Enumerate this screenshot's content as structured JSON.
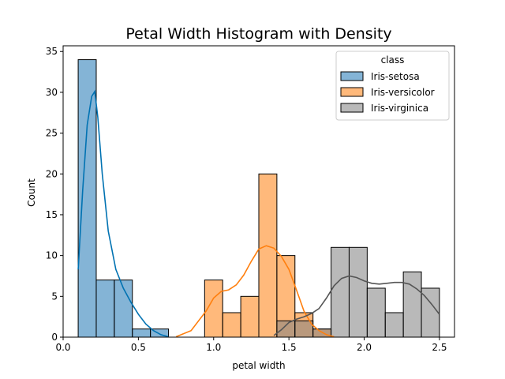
{
  "chart_data": {
    "type": "bar",
    "title": "Petal Width Histogram with Density",
    "xlabel": "petal width",
    "ylabel": "Count",
    "xlim": [
      0.0,
      2.6
    ],
    "ylim": [
      0,
      35.7
    ],
    "xticks": [
      0.0,
      0.5,
      1.0,
      1.5,
      2.0,
      2.5
    ],
    "yticks": [
      0,
      5,
      10,
      15,
      20,
      25,
      30,
      35
    ],
    "xtick_labels": [
      "0.0",
      "0.5",
      "1.0",
      "1.5",
      "2.0",
      "2.5"
    ],
    "ytick_labels": [
      "0",
      "5",
      "10",
      "15",
      "20",
      "25",
      "30",
      "35"
    ],
    "grid": false,
    "legend": {
      "title": "class",
      "position": "top-right"
    },
    "bin_width": 0.12,
    "series": [
      {
        "name": "Iris-setosa",
        "color": "#1f77b4",
        "kde_color": "#0072b2",
        "bins": [
          {
            "x0": 0.1,
            "count": 34
          },
          {
            "x0": 0.22,
            "count": 7
          },
          {
            "x0": 0.34,
            "count": 7
          },
          {
            "x0": 0.46,
            "count": 1
          },
          {
            "x0": 0.58,
            "count": 1
          }
        ],
        "kde": [
          [
            0.1,
            8.3
          ],
          [
            0.13,
            18
          ],
          [
            0.16,
            26
          ],
          [
            0.19,
            29.5
          ],
          [
            0.21,
            30.1
          ],
          [
            0.23,
            27
          ],
          [
            0.26,
            20
          ],
          [
            0.3,
            13
          ],
          [
            0.35,
            8.3
          ],
          [
            0.4,
            6
          ],
          [
            0.45,
            4.3
          ],
          [
            0.5,
            2.8
          ],
          [
            0.55,
            1.6
          ],
          [
            0.6,
            0.8
          ],
          [
            0.65,
            0.3
          ],
          [
            0.7,
            0.05
          ]
        ]
      },
      {
        "name": "Iris-versicolor",
        "color": "#ff7f0e",
        "kde_color": "#ff7f0e",
        "bins": [
          {
            "x0": 0.94,
            "count": 7
          },
          {
            "x0": 1.06,
            "count": 3
          },
          {
            "x0": 1.18,
            "count": 5
          },
          {
            "x0": 1.3,
            "count": 20
          },
          {
            "x0": 1.42,
            "count": 10
          },
          {
            "x0": 1.54,
            "count": 3
          },
          {
            "x0": 1.66,
            "count": 1
          }
        ],
        "kde": [
          [
            0.75,
            0.05
          ],
          [
            0.85,
            0.8
          ],
          [
            0.95,
            3.2
          ],
          [
            1.0,
            4.8
          ],
          [
            1.05,
            5.6
          ],
          [
            1.1,
            5.8
          ],
          [
            1.15,
            6.4
          ],
          [
            1.2,
            7.6
          ],
          [
            1.25,
            9.3
          ],
          [
            1.3,
            10.8
          ],
          [
            1.35,
            11.2
          ],
          [
            1.4,
            10.9
          ],
          [
            1.45,
            9.9
          ],
          [
            1.5,
            8.3
          ],
          [
            1.55,
            5.8
          ],
          [
            1.6,
            3.2
          ],
          [
            1.65,
            1.6
          ],
          [
            1.7,
            0.8
          ],
          [
            1.75,
            0.3
          ],
          [
            1.8,
            0.05
          ]
        ]
      },
      {
        "name": "Iris-virginica",
        "color": "#7f7f7f",
        "kde_color": "#555555",
        "bins": [
          {
            "x0": 1.42,
            "count": 2
          },
          {
            "x0": 1.54,
            "count": 2
          },
          {
            "x0": 1.66,
            "count": 1
          },
          {
            "x0": 1.78,
            "count": 11
          },
          {
            "x0": 1.9,
            "count": 11
          },
          {
            "x0": 2.02,
            "count": 6
          },
          {
            "x0": 2.14,
            "count": 3
          },
          {
            "x0": 2.26,
            "count": 8
          },
          {
            "x0": 2.38,
            "count": 6
          }
        ],
        "kde": [
          [
            1.4,
            0.2
          ],
          [
            1.45,
            0.9
          ],
          [
            1.5,
            1.8
          ],
          [
            1.55,
            2.2
          ],
          [
            1.6,
            2.5
          ],
          [
            1.65,
            2.9
          ],
          [
            1.7,
            3.5
          ],
          [
            1.75,
            4.8
          ],
          [
            1.8,
            6.3
          ],
          [
            1.85,
            7.2
          ],
          [
            1.9,
            7.5
          ],
          [
            1.95,
            7.3
          ],
          [
            2.0,
            6.9
          ],
          [
            2.05,
            6.6
          ],
          [
            2.1,
            6.5
          ],
          [
            2.15,
            6.6
          ],
          [
            2.2,
            6.7
          ],
          [
            2.25,
            6.7
          ],
          [
            2.3,
            6.5
          ],
          [
            2.35,
            5.9
          ],
          [
            2.4,
            5.1
          ],
          [
            2.45,
            4.0
          ],
          [
            2.5,
            2.8
          ]
        ]
      }
    ]
  }
}
